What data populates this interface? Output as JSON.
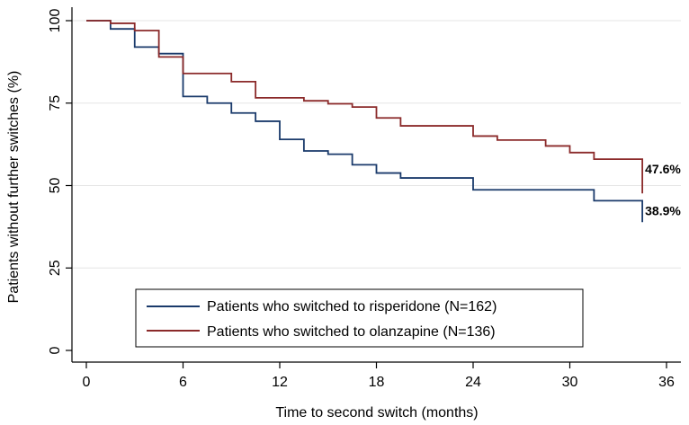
{
  "chart_data": {
    "type": "line",
    "line_style": "step",
    "xlabel": "Time to second switch (months)",
    "ylabel": "Patients without further switches (%)",
    "xlim": [
      0,
      36
    ],
    "ylim": [
      0,
      100
    ],
    "x_ticks": [
      0,
      6,
      12,
      18,
      24,
      30,
      36
    ],
    "y_ticks": [
      0,
      25,
      50,
      75,
      100
    ],
    "y_tick_labels": [
      "0",
      "25",
      "50",
      "75",
      "100"
    ],
    "grid": "horizontal",
    "legend_placement": "bottom-center",
    "series": [
      {
        "name": "Patients who switched to risperidone (N=162)",
        "color": "#1a3a6b",
        "points": [
          [
            0,
            100
          ],
          [
            1.5,
            97.5
          ],
          [
            3,
            92
          ],
          [
            4.5,
            90
          ],
          [
            6,
            77
          ],
          [
            7.5,
            75
          ],
          [
            9,
            72
          ],
          [
            10.5,
            69.5
          ],
          [
            12,
            64
          ],
          [
            13.5,
            60.5
          ],
          [
            15,
            59.5
          ],
          [
            16.5,
            56.3
          ],
          [
            18,
            53.8
          ],
          [
            19.5,
            52.3
          ],
          [
            24,
            48.7
          ],
          [
            31.5,
            45.4
          ],
          [
            34.5,
            45.4
          ],
          [
            34.5,
            38.9
          ]
        ],
        "end_label": "38.9%"
      },
      {
        "name": "Patients who switched to olanzapine (N=136)",
        "color": "#8b2a2a",
        "points": [
          [
            0,
            100
          ],
          [
            1.5,
            99.2
          ],
          [
            3,
            97
          ],
          [
            4.5,
            89
          ],
          [
            6,
            84
          ],
          [
            9,
            81.5
          ],
          [
            10.5,
            76.6
          ],
          [
            13.5,
            75.7
          ],
          [
            15,
            74.8
          ],
          [
            16.5,
            73.8
          ],
          [
            18,
            70.5
          ],
          [
            19.5,
            68.1
          ],
          [
            24,
            65
          ],
          [
            25.5,
            63.8
          ],
          [
            28.5,
            62
          ],
          [
            30,
            60
          ],
          [
            31.5,
            58
          ],
          [
            34.5,
            58
          ],
          [
            34.5,
            47.6
          ]
        ],
        "end_label": "47.6%"
      }
    ]
  }
}
